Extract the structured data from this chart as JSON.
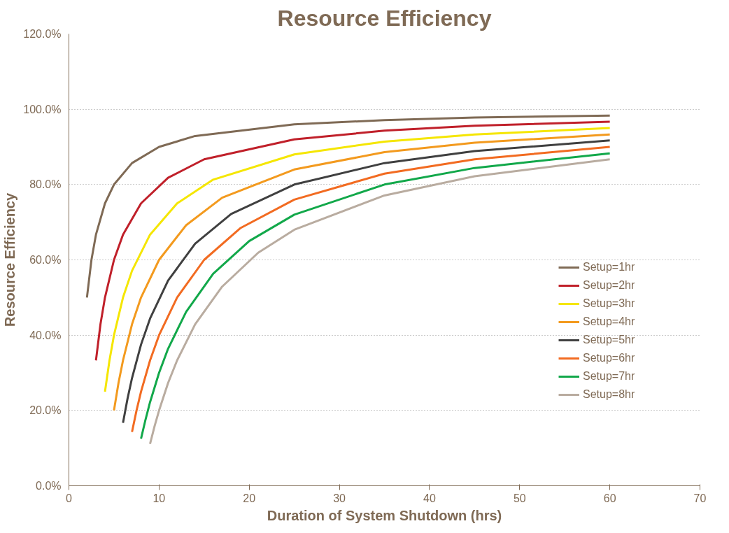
{
  "chart_data": {
    "type": "line",
    "title": "Resource Efficiency",
    "xlabel": "Duration of System Shutdown (hrs)",
    "ylabel": "Resource Efficiency",
    "xlim": [
      0,
      70
    ],
    "xticks": [
      0,
      10,
      20,
      30,
      40,
      50,
      60,
      70
    ],
    "ylim": [
      0,
      120
    ],
    "yticks": [
      {
        "value": 0,
        "label": "0.0%"
      },
      {
        "value": 20,
        "label": "20.0%"
      },
      {
        "value": 40,
        "label": "40.0%"
      },
      {
        "value": 60,
        "label": "60.0%"
      },
      {
        "value": 80,
        "label": "80.0%"
      },
      {
        "value": 100,
        "label": "100.0%"
      },
      {
        "value": 120,
        "label": "120.0%"
      }
    ],
    "grid": "y",
    "legend": "right",
    "marker": "none",
    "line_style": "solid",
    "series": [
      {
        "name": "Setup=1hr",
        "color": "#7f6a55",
        "x": [
          2,
          2.5,
          3,
          4,
          5,
          7,
          10,
          14,
          25,
          35,
          45,
          60
        ],
        "values": [
          50.0,
          60.0,
          66.7,
          75.0,
          80.0,
          85.7,
          90.0,
          92.9,
          96.0,
          97.1,
          97.8,
          98.3
        ]
      },
      {
        "name": "Setup=2hr",
        "color": "#c0202a",
        "x": [
          3,
          3.5,
          4,
          5,
          6,
          8,
          11,
          15,
          25,
          35,
          45,
          60
        ],
        "values": [
          33.3,
          42.9,
          50.0,
          60.0,
          66.7,
          75.0,
          81.8,
          86.7,
          92.0,
          94.3,
          95.6,
          96.7
        ]
      },
      {
        "name": "Setup=3hr",
        "color": "#f5e600",
        "x": [
          4,
          4.5,
          5,
          6,
          7,
          9,
          12,
          16,
          25,
          35,
          45,
          60
        ],
        "values": [
          25.0,
          33.3,
          40.0,
          50.0,
          57.1,
          66.7,
          75.0,
          81.3,
          88.0,
          91.4,
          93.3,
          95.0
        ]
      },
      {
        "name": "Setup=4hr",
        "color": "#f39a1e",
        "x": [
          5,
          5.5,
          6,
          7,
          8,
          10,
          13,
          17,
          25,
          35,
          45,
          60
        ],
        "values": [
          20.0,
          27.3,
          33.3,
          42.9,
          50.0,
          60.0,
          69.2,
          76.5,
          84.0,
          88.6,
          91.1,
          93.3
        ]
      },
      {
        "name": "Setup=5hr",
        "color": "#404040",
        "x": [
          6,
          6.5,
          7,
          8,
          9,
          11,
          14,
          18,
          25,
          35,
          45,
          60
        ],
        "values": [
          16.7,
          23.1,
          28.6,
          37.5,
          44.4,
          54.5,
          64.3,
          72.2,
          80.0,
          85.7,
          88.9,
          91.7
        ]
      },
      {
        "name": "Setup=6hr",
        "color": "#f26b21",
        "x": [
          7,
          7.5,
          8,
          9,
          10,
          12,
          15,
          19,
          25,
          35,
          45,
          60
        ],
        "values": [
          14.3,
          20.0,
          25.0,
          33.3,
          40.0,
          50.0,
          60.0,
          68.4,
          76.0,
          82.9,
          86.7,
          90.0
        ]
      },
      {
        "name": "Setup=7hr",
        "color": "#12a84a",
        "x": [
          8,
          8.5,
          9,
          10,
          11,
          13,
          16,
          20,
          25,
          35,
          45,
          60
        ],
        "values": [
          12.5,
          17.6,
          22.2,
          30.0,
          36.4,
          46.2,
          56.3,
          65.0,
          72.0,
          80.0,
          84.4,
          88.3
        ]
      },
      {
        "name": "Setup=8hr",
        "color": "#b9aca0",
        "x": [
          9,
          9.5,
          10,
          11,
          12,
          14,
          17,
          21,
          25,
          35,
          45,
          60
        ],
        "values": [
          11.1,
          15.8,
          20.0,
          27.3,
          33.3,
          42.9,
          52.9,
          61.9,
          68.0,
          77.1,
          82.2,
          86.7
        ]
      }
    ]
  }
}
